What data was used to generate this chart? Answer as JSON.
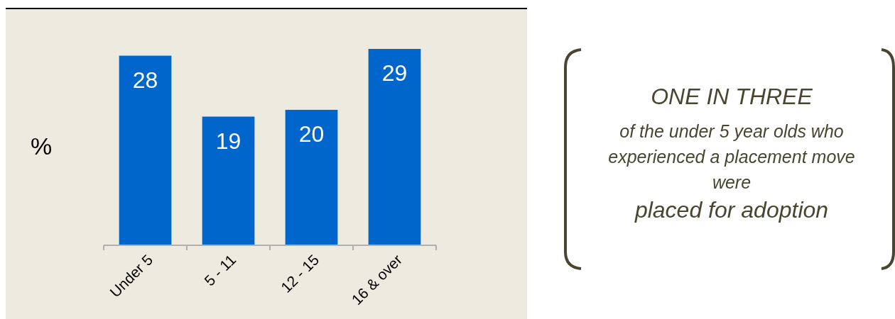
{
  "chart_data": {
    "type": "bar",
    "ylabel": "%",
    "categories": [
      "Under 5",
      "5 - 11",
      "12 - 15",
      "16 & over"
    ],
    "values": [
      28,
      19,
      20,
      29
    ],
    "color": "#0066cc",
    "data_labels": true,
    "annotations": [
      "ONE IN THREE",
      "of the under 5 year olds who experienced a placement move were",
      "placed for adoption"
    ]
  }
}
